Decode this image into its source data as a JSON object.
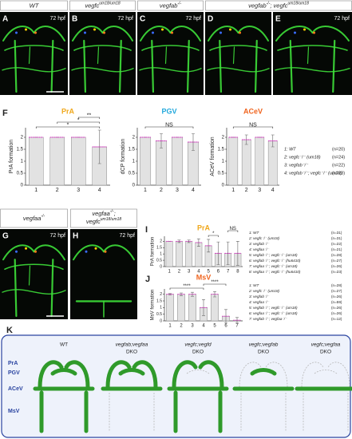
{
  "figure": {
    "top_row": {
      "headers": [
        [
          {
            "t": "WT"
          }
        ],
        [
          {
            "t": "vegfc"
          },
          {
            "t": "um18/um18",
            "sup": true
          }
        ],
        [
          {
            "t": "vegfab"
          },
          {
            "t": "-/-",
            "sup": true
          }
        ],
        [
          {
            "t": "vegfab"
          },
          {
            "t": "-/-",
            "sup": true
          },
          {
            "t": "; vegfc"
          },
          {
            "t": "um18/um18",
            "sup": true
          }
        ]
      ],
      "panels": [
        {
          "letter": "A",
          "time": "72 hpf"
        },
        {
          "letter": "B",
          "time": "72 hpf"
        },
        {
          "letter": "C",
          "time": "72 hpf"
        },
        {
          "letter": "D"
        },
        {
          "letter": "E",
          "time": "72 hpf"
        }
      ]
    },
    "F": {
      "letter": "F",
      "charts": [
        {
          "type": "bar",
          "title": "PrA",
          "title_color": "#f0a81c",
          "ylabel": "PrA formation",
          "categories": [
            "1",
            "2",
            "3",
            "4"
          ],
          "values": [
            2,
            2,
            2,
            1.6
          ],
          "errors": [
            0,
            0,
            0,
            0.7
          ],
          "ylim": [
            0,
            2.4
          ],
          "yticks": [
            0,
            0.5,
            1,
            1.5,
            2
          ],
          "annotations": [
            {
              "label": "*",
              "pair": [
                "1",
                "4"
              ]
            },
            {
              "label": "*",
              "pair": [
                "2",
                "4"
              ]
            },
            {
              "label": "**",
              "pair": [
                "3",
                "4"
              ]
            }
          ]
        },
        {
          "type": "bar",
          "title": "PGV",
          "title_color": "#22a8dc",
          "ylabel": "dCP formation",
          "categories": [
            "1",
            "2",
            "3",
            "4"
          ],
          "values": [
            2,
            1.85,
            2,
            1.8
          ],
          "errors": [
            0,
            0.3,
            0,
            0.35
          ],
          "ylim": [
            0,
            2.4
          ],
          "yticks": [
            0,
            0.5,
            1,
            1.5,
            2
          ],
          "annotations": [
            {
              "label": "NS",
              "pair": [
                "1",
                "4"
              ]
            }
          ]
        },
        {
          "type": "bar",
          "title": "ACeV",
          "title_color": "#f0641e",
          "ylabel": "ACeV formation",
          "categories": [
            "1",
            "2",
            "3",
            "4"
          ],
          "values": [
            2,
            1.9,
            2,
            1.85
          ],
          "errors": [
            0,
            0.2,
            0,
            0.25
          ],
          "ylim": [
            0,
            2.4
          ],
          "yticks": [
            0,
            0.5,
            1,
            1.5,
            2
          ],
          "annotations": [
            {
              "label": "NS",
              "pair": [
                "1",
                "4"
              ]
            }
          ]
        }
      ],
      "legend": [
        {
          "text": "1: WT",
          "n": "(n=20)"
        },
        {
          "text": "2: vegfc⁻/⁻ (um18)",
          "n": "(n=24)"
        },
        {
          "text": "3: vegfab⁻/⁻",
          "n": "(n=22)"
        },
        {
          "text": "4: vegfab⁻/⁻; vegfc⁻/⁻ (um18)",
          "n": "(n=28)"
        }
      ]
    },
    "GH": {
      "headers": [
        [
          [
            {
              "t": "vegfaa"
            },
            {
              "t": "-/-",
              "sup": true
            }
          ]
        ],
        [
          [
            {
              "t": "vegfaa"
            },
            {
              "t": "-/-",
              "sup": true
            },
            {
              "t": ";"
            }
          ],
          [
            {
              "t": "vegfc"
            },
            {
              "t": "um18/um18",
              "sup": true
            }
          ]
        ]
      ],
      "panels": [
        {
          "letter": "G",
          "time": "72 hpf"
        },
        {
          "letter": "H",
          "time": "72 hpf"
        }
      ]
    },
    "I": {
      "letter": "I",
      "chart": {
        "type": "bar",
        "title": "PrA",
        "title_color": "#f0a81c",
        "ylabel": "PrA formation",
        "categories": [
          "1",
          "2",
          "3",
          "4",
          "5",
          "6",
          "7",
          "8"
        ],
        "values": [
          2,
          2,
          2,
          1.9,
          1.65,
          1.05,
          1.05,
          1.05
        ],
        "errors": [
          0,
          0.1,
          0.1,
          0.3,
          0.5,
          0.9,
          0.9,
          0.95
        ],
        "ylim": [
          0,
          2.4
        ],
        "yticks": [
          0,
          0.5,
          1,
          1.5,
          2
        ],
        "annotations": [
          {
            "label": "*",
            "pair": [
              "5",
              "6"
            ]
          },
          {
            "label": "NS",
            "pair": [
              "7",
              "8"
            ]
          }
        ]
      },
      "legend": [
        {
          "text": "1: WT",
          "n": "(n=31)"
        },
        {
          "text": "2: vegfc⁻/⁻ (um18)",
          "n": "(n=31)"
        },
        {
          "text": "3: vegfab⁻/⁻",
          "n": "(n=22)"
        },
        {
          "text": "4: vegfaa⁻/⁻",
          "n": "(n=21)"
        },
        {
          "text": "5: vegfab⁻/⁻; vegfc⁻/⁻ (um18)",
          "n": "(n=28)"
        },
        {
          "text": "6: vegfab⁻/⁻; vegfc⁻/⁻ (hu6410)",
          "n": "(n=27)"
        },
        {
          "text": "7: vegfaa⁻/⁻; vegfc⁻/⁻ (um18)",
          "n": "(n=26)"
        },
        {
          "text": "8: vegfaa⁻/⁻; vegfc⁻/⁻ (hu6410)",
          "n": "(n=23)"
        }
      ]
    },
    "J": {
      "letter": "J",
      "chart": {
        "type": "bar",
        "title": "MsV",
        "title_color": "#f0641e",
        "ylabel": "MsV formation",
        "categories": [
          "1",
          "2",
          "3",
          "4",
          "5",
          "6",
          "7"
        ],
        "values": [
          2,
          2,
          2,
          1.0,
          2,
          0.35,
          0.05
        ],
        "errors": [
          0.05,
          0.1,
          0.15,
          0.6,
          0.2,
          0.5,
          0.2
        ],
        "ylim": [
          0,
          2.4
        ],
        "yticks": [
          0,
          0.5,
          1,
          1.5,
          2
        ],
        "annotations": [
          {
            "label": "****",
            "pair": [
              "1",
              "4"
            ]
          },
          {
            "label": "****",
            "pair": [
              "4",
              "6"
            ]
          }
        ]
      },
      "legend": [
        {
          "text": "1: WT",
          "n": "(n=28)"
        },
        {
          "text": "2: vegfc⁻/⁻ (um18)",
          "n": "(n=27)"
        },
        {
          "text": "3: vegfab⁻/⁻",
          "n": "(n=26)"
        },
        {
          "text": "4: vegfaa⁻/⁻",
          "n": "(n=59)"
        },
        {
          "text": "5: vegfab⁻/⁻; vegfc⁻/⁻ (um18)",
          "n": "(n=26)"
        },
        {
          "text": "6: vegfaa⁻/⁻; vegfc⁻/⁻ (um18)",
          "n": "(n=26)"
        },
        {
          "text": "7: vegfab⁻/⁻; vegfaa⁻/⁻",
          "n": "(n=12)"
        }
      ]
    },
    "K": {
      "letter": "K",
      "rows": [
        "PrA",
        "PGV",
        "ACeV",
        "MsV"
      ],
      "columns": [
        {
          "name": "WT"
        },
        {
          "name": "vegfab;vegfaa",
          "sub": "DKO"
        },
        {
          "name": "vegfc;vegfd",
          "sub": "DKO"
        },
        {
          "name": "vegfc;vegfab",
          "sub": "DKO"
        },
        {
          "name": "vegfc;vegfaa",
          "sub": "DKO"
        }
      ]
    }
  }
}
